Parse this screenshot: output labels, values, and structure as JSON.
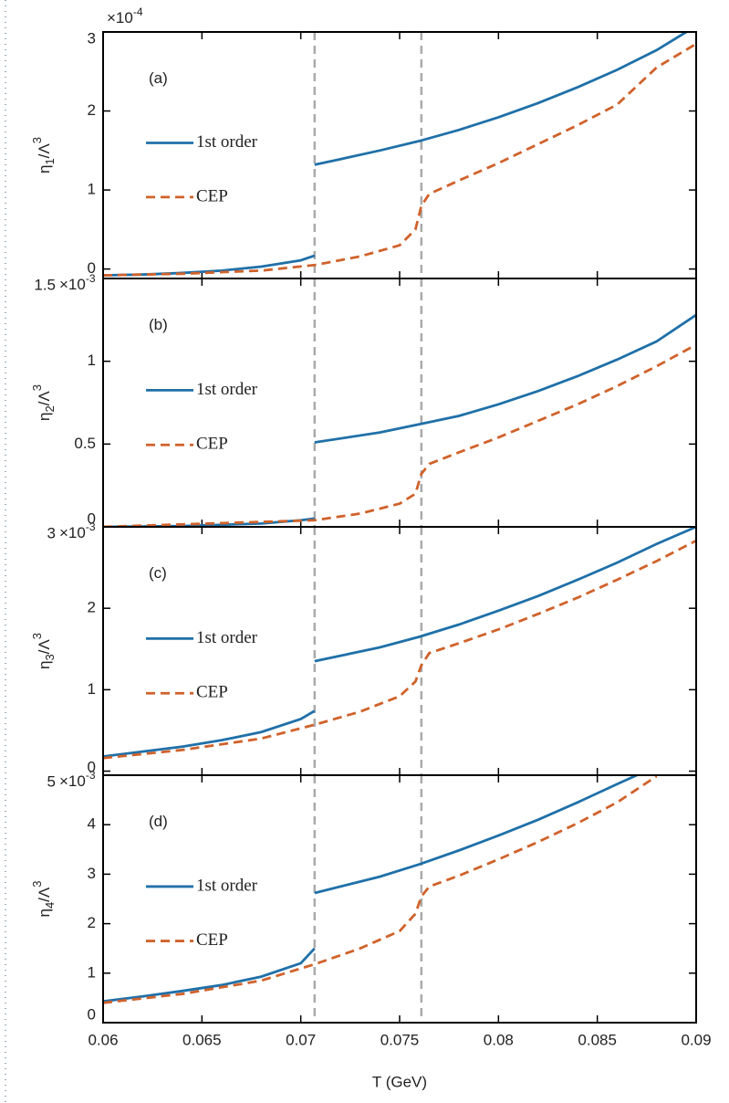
{
  "chart_data": [
    {
      "type": "line",
      "panel_label": "(a)",
      "ylabel": {
        "symbol": "η",
        "sub": "1",
        "mid": "/Λ",
        "sup": "3"
      },
      "y_multiplier": {
        "base": "×10",
        "exponent": "-4"
      },
      "xlim": [
        0.06,
        0.09
      ],
      "xticks": [
        0.06,
        0.065,
        0.07,
        0.075,
        0.08,
        0.085,
        0.09
      ],
      "ylim": [
        -0.12,
        3
      ],
      "yticks": [
        0,
        1,
        2,
        3
      ],
      "legend": "left",
      "vlines": [
        0.0707,
        0.0761
      ],
      "series": [
        {
          "name": "1st order",
          "color": "#1f70a8",
          "style": "solid",
          "x": [
            0.06,
            0.062,
            0.064,
            0.066,
            0.068,
            0.07,
            0.0707,
            0.0707,
            0.0707,
            0.072,
            0.074,
            0.076,
            0.078,
            0.08,
            0.082,
            0.084,
            0.086,
            0.088,
            0.0895
          ],
          "values": [
            -0.08,
            -0.07,
            -0.05,
            -0.02,
            0.03,
            0.11,
            0.17,
            null,
            1.32,
            1.39,
            1.5,
            1.62,
            1.76,
            1.92,
            2.1,
            2.3,
            2.52,
            2.77,
            3.0
          ]
        },
        {
          "name": "CEP",
          "color": "#d0622b",
          "style": "dashed",
          "x": [
            0.06,
            0.064,
            0.068,
            0.0707,
            0.073,
            0.075,
            0.0758,
            0.0761,
            0.0765,
            0.078,
            0.08,
            0.082,
            0.084,
            0.086,
            0.088,
            0.09
          ],
          "values": [
            -0.08,
            -0.06,
            -0.02,
            0.05,
            0.16,
            0.3,
            0.5,
            0.8,
            0.95,
            1.12,
            1.34,
            1.58,
            1.82,
            2.08,
            2.55,
            2.85
          ]
        }
      ]
    },
    {
      "type": "line",
      "panel_label": "(b)",
      "ylabel": {
        "symbol": "η",
        "sub": "2",
        "mid": "/Λ",
        "sup": "3"
      },
      "y_multiplier": {
        "base": "×10",
        "exponent": "-3"
      },
      "xlim": [
        0.06,
        0.09
      ],
      "xticks": [
        0.06,
        0.065,
        0.07,
        0.075,
        0.08,
        0.085,
        0.09
      ],
      "ylim": [
        0,
        1.5
      ],
      "yticks": [
        0,
        0.5,
        1,
        1.5
      ],
      "legend": "left",
      "vlines": [
        0.0707,
        0.0761
      ],
      "series": [
        {
          "name": "1st order",
          "color": "#1f70a8",
          "style": "solid",
          "x": [
            0.06,
            0.064,
            0.068,
            0.07,
            0.0707,
            0.0707,
            0.0707,
            0.074,
            0.076,
            0.078,
            0.08,
            0.082,
            0.084,
            0.086,
            0.088,
            0.09
          ],
          "values": [
            0.0,
            0.005,
            0.02,
            0.04,
            0.05,
            null,
            0.51,
            0.57,
            0.62,
            0.67,
            0.74,
            0.82,
            0.91,
            1.01,
            1.12,
            1.28
          ]
        },
        {
          "name": "CEP",
          "color": "#d0622b",
          "style": "dashed",
          "x": [
            0.06,
            0.0707,
            0.073,
            0.075,
            0.0758,
            0.0761,
            0.0765,
            0.078,
            0.08,
            0.082,
            0.084,
            0.086,
            0.088,
            0.09
          ],
          "values": [
            0.0,
            0.04,
            0.08,
            0.14,
            0.2,
            0.32,
            0.38,
            0.45,
            0.54,
            0.64,
            0.74,
            0.85,
            0.97,
            1.1
          ]
        }
      ]
    },
    {
      "type": "line",
      "panel_label": "(c)",
      "ylabel": {
        "symbol": "η",
        "sub": "3",
        "mid": "/Λ",
        "sup": "3"
      },
      "y_multiplier": {
        "base": "×10",
        "exponent": "-3"
      },
      "xlim": [
        0.06,
        0.09
      ],
      "xticks": [
        0.06,
        0.065,
        0.07,
        0.075,
        0.08,
        0.085,
        0.09
      ],
      "ylim": [
        -0.05,
        3
      ],
      "yticks": [
        0,
        1,
        2,
        3
      ],
      "legend": "left",
      "vlines": [
        0.0707,
        0.0761
      ],
      "series": [
        {
          "name": "1st order",
          "color": "#1f70a8",
          "style": "solid",
          "x": [
            0.06,
            0.062,
            0.064,
            0.066,
            0.068,
            0.07,
            0.0707,
            0.0707,
            0.0707,
            0.074,
            0.076,
            0.078,
            0.08,
            0.082,
            0.084,
            0.086,
            0.088,
            0.09
          ],
          "values": [
            0.18,
            0.24,
            0.3,
            0.38,
            0.48,
            0.64,
            0.74,
            null,
            1.35,
            1.52,
            1.65,
            1.8,
            1.97,
            2.15,
            2.35,
            2.56,
            2.79,
            3.0
          ]
        },
        {
          "name": "CEP",
          "color": "#d0622b",
          "style": "dashed",
          "x": [
            0.06,
            0.064,
            0.068,
            0.0707,
            0.073,
            0.075,
            0.0758,
            0.0761,
            0.0765,
            0.078,
            0.08,
            0.082,
            0.084,
            0.086,
            0.088,
            0.09
          ],
          "values": [
            0.16,
            0.26,
            0.4,
            0.57,
            0.73,
            0.92,
            1.1,
            1.3,
            1.45,
            1.57,
            1.74,
            1.93,
            2.13,
            2.35,
            2.58,
            2.83
          ]
        }
      ]
    },
    {
      "type": "line",
      "panel_label": "(d)",
      "ylabel": {
        "symbol": "η",
        "sub": "4",
        "mid": "/Λ",
        "sup": "3"
      },
      "y_multiplier": {
        "base": "×10",
        "exponent": "-3"
      },
      "xlabel": "T (GeV)",
      "xlim": [
        0.06,
        0.09
      ],
      "xticks": [
        0.06,
        0.065,
        0.07,
        0.075,
        0.08,
        0.085,
        0.09
      ],
      "ylim": [
        0,
        5
      ],
      "yticks": [
        0,
        1,
        2,
        3,
        4,
        5
      ],
      "legend": "left",
      "vlines": [
        0.0707,
        0.0761
      ],
      "series": [
        {
          "name": "1st order",
          "color": "#1f70a8",
          "style": "solid",
          "x": [
            0.06,
            0.062,
            0.064,
            0.066,
            0.068,
            0.07,
            0.0707,
            0.0707,
            0.0707,
            0.074,
            0.076,
            0.078,
            0.08,
            0.082,
            0.084,
            0.086,
            0.087
          ],
          "values": [
            0.43,
            0.53,
            0.64,
            0.76,
            0.93,
            1.2,
            1.5,
            null,
            2.62,
            2.95,
            3.2,
            3.48,
            3.78,
            4.1,
            4.45,
            4.82,
            5.0
          ]
        },
        {
          "name": "CEP",
          "color": "#d0622b",
          "style": "dashed",
          "x": [
            0.06,
            0.064,
            0.068,
            0.0707,
            0.073,
            0.075,
            0.0758,
            0.0761,
            0.0765,
            0.078,
            0.08,
            0.082,
            0.084,
            0.086,
            0.088
          ],
          "values": [
            0.4,
            0.58,
            0.85,
            1.18,
            1.5,
            1.85,
            2.2,
            2.55,
            2.75,
            2.97,
            3.3,
            3.65,
            4.03,
            4.45,
            4.98
          ]
        }
      ]
    }
  ]
}
